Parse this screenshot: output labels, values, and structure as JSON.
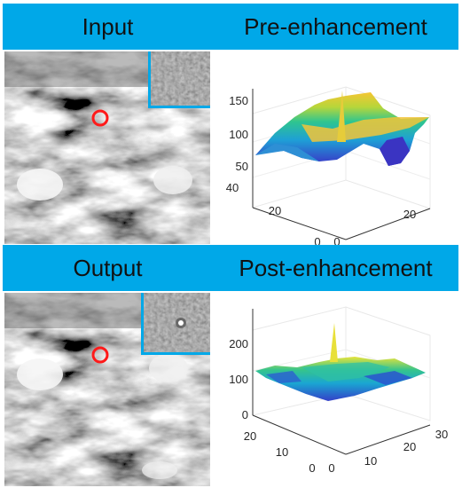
{
  "top": {
    "left_label": "Input",
    "right_label": "Pre-enhancement",
    "plot": {
      "z_ticks": [
        "50",
        "100",
        "150"
      ],
      "y_ticks": [
        "0",
        "20",
        "40"
      ],
      "x_ticks": [
        "0",
        "20"
      ]
    }
  },
  "bottom": {
    "left_label": "Output",
    "right_label": "Post-enhancement",
    "plot": {
      "z_ticks": [
        "0",
        "100",
        "200"
      ],
      "y_ticks": [
        "0",
        "10",
        "20"
      ],
      "x_ticks": [
        "0",
        "10",
        "20",
        "30"
      ]
    }
  },
  "colors": {
    "banner": "#00a8e8",
    "inset_border": "#00a8e8",
    "target_marker": "#ff1a1a"
  }
}
